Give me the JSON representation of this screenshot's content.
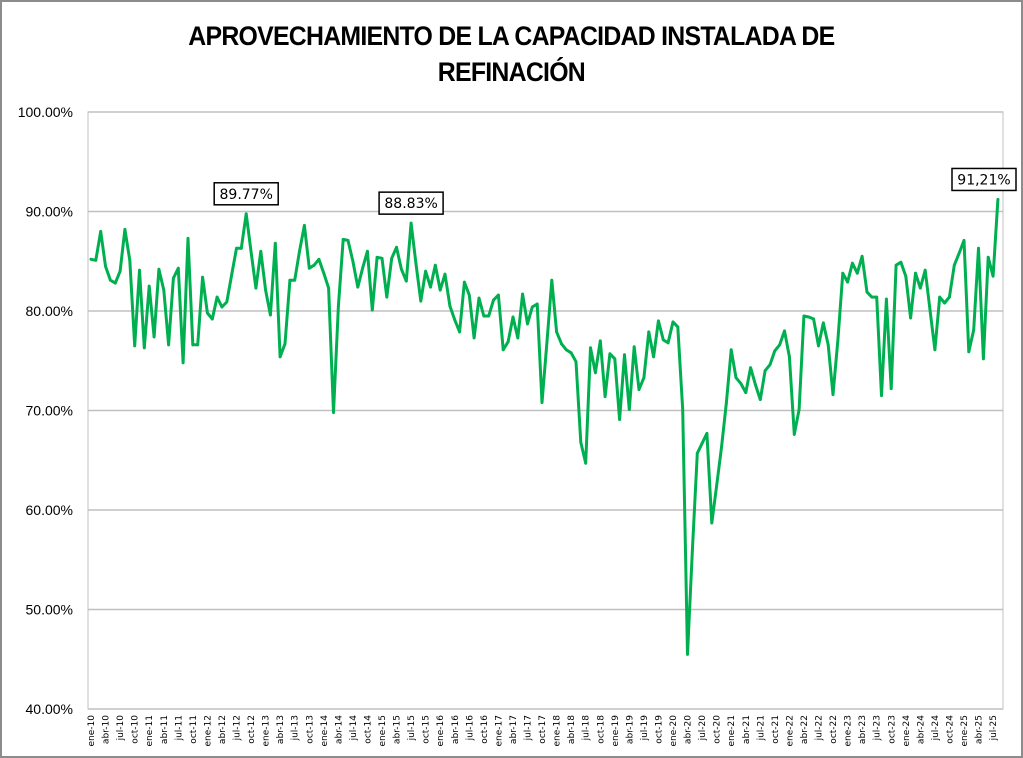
{
  "chart_data": {
    "type": "line",
    "title_lines": [
      "APROVECHAMIENTO DE LA CAPACIDAD INSTALADA DE",
      "REFINACIÓN"
    ],
    "xlabel": "",
    "ylabel": "",
    "ylim": [
      40,
      100
    ],
    "y_ticks": [
      "100.00%",
      "90.00%",
      "80.00%",
      "70.00%",
      "60.00%",
      "50.00%",
      "40.00%"
    ],
    "y_tick_values": [
      100,
      90,
      80,
      70,
      60,
      50,
      40
    ],
    "grid": true,
    "legend": "none",
    "x_start": "ene-10",
    "x_end": "ago-25",
    "x_tick_labels": [
      "ene-10",
      "abr-10",
      "jul-10",
      "oct-10",
      "ene-11",
      "abr-11",
      "jul-11",
      "oct-11",
      "ene-12",
      "abr-12",
      "jul-12",
      "oct-12",
      "ene-13",
      "abr-13",
      "jul-13",
      "oct-13",
      "ene-14",
      "abr-14",
      "jul-14",
      "oct-14",
      "ene-15",
      "abr-15",
      "jul-15",
      "oct-15",
      "ene-16",
      "abr-16",
      "jul-16",
      "oct-16",
      "ene-17",
      "abr-17",
      "jul-17",
      "oct-17",
      "ene-18",
      "abr-18",
      "jul-18",
      "oct-18",
      "ene-19",
      "abr-19",
      "jul-19",
      "oct-19",
      "ene-20",
      "abr-20",
      "jul-20",
      "oct-20",
      "ene-21",
      "abr-21",
      "jul-21",
      "oct-21",
      "ene-22",
      "abr-22",
      "jul-22",
      "oct-22",
      "ene-23",
      "abr-23",
      "jul-23",
      "oct-23",
      "ene-24",
      "abr-24",
      "jul-24",
      "oct-24",
      "ene-25",
      "abr-25",
      "jul-25"
    ],
    "series": [
      {
        "name": "Aprovechamiento",
        "color": "#00b050",
        "values": [
          85.2,
          85.1,
          88.0,
          84.5,
          83.1,
          82.8,
          84.0,
          88.2,
          85.1,
          76.5,
          84.1,
          76.3,
          82.5,
          77.4,
          84.2,
          82.1,
          76.6,
          83.3,
          84.3,
          74.8,
          87.3,
          76.6,
          76.6,
          83.4,
          79.8,
          79.2,
          81.4,
          80.4,
          80.9,
          83.6,
          86.3,
          86.3,
          89.77,
          86.0,
          82.3,
          86.0,
          82.1,
          79.6,
          86.8,
          75.4,
          76.7,
          83.1,
          83.1,
          86.0,
          88.6,
          84.3,
          84.6,
          85.2,
          83.8,
          82.3,
          69.8,
          80.5,
          87.2,
          87.1,
          85.0,
          82.4,
          84.3,
          86.0,
          80.1,
          85.4,
          85.3,
          81.4,
          85.3,
          86.4,
          84.2,
          83.0,
          88.83,
          84.8,
          81.0,
          84.0,
          82.4,
          84.6,
          82.1,
          83.7,
          80.5,
          79.1,
          77.9,
          82.9,
          81.6,
          77.3,
          81.3,
          79.5,
          79.5,
          81.1,
          81.6,
          76.1,
          76.9,
          79.4,
          77.3,
          81.7,
          78.7,
          80.4,
          80.7,
          70.8,
          76.8,
          83.1,
          77.9,
          76.7,
          76.1,
          75.8,
          74.9,
          66.8,
          64.7,
          76.3,
          73.8,
          77.0,
          71.4,
          75.7,
          75.2,
          69.1,
          75.6,
          70.1,
          76.4,
          72.1,
          73.3,
          77.9,
          75.4,
          79.0,
          77.1,
          76.8,
          78.9,
          78.4,
          70.1,
          45.5,
          56.0,
          65.7,
          66.7,
          67.7,
          58.7,
          62.4,
          66.3,
          70.7,
          76.1,
          73.3,
          72.7,
          71.8,
          74.3,
          72.6,
          71.1,
          74.0,
          74.6,
          76.0,
          76.6,
          78.0,
          75.4,
          67.6,
          70.1,
          79.5,
          79.4,
          79.2,
          76.5,
          78.8,
          76.6,
          71.6,
          77.1,
          83.8,
          82.9,
          84.8,
          83.8,
          85.5,
          81.9,
          81.4,
          81.4,
          71.5,
          81.2,
          72.2,
          84.6,
          84.9,
          83.5,
          79.3,
          83.8,
          82.3,
          84.1,
          80.1,
          76.1,
          81.4,
          80.8,
          81.4,
          84.6,
          85.8,
          87.1,
          75.9,
          78.1,
          86.3,
          75.2,
          85.4,
          83.5,
          91.21
        ]
      }
    ],
    "annotations": [
      {
        "index": 32,
        "text": "89.77%"
      },
      {
        "index": 66,
        "text": "88.83%"
      },
      {
        "index": 187,
        "text": "91,21%"
      }
    ],
    "colors": {
      "line": "#00b050",
      "grid": "#c0c0c0",
      "frame": "#8c8c8c"
    }
  }
}
